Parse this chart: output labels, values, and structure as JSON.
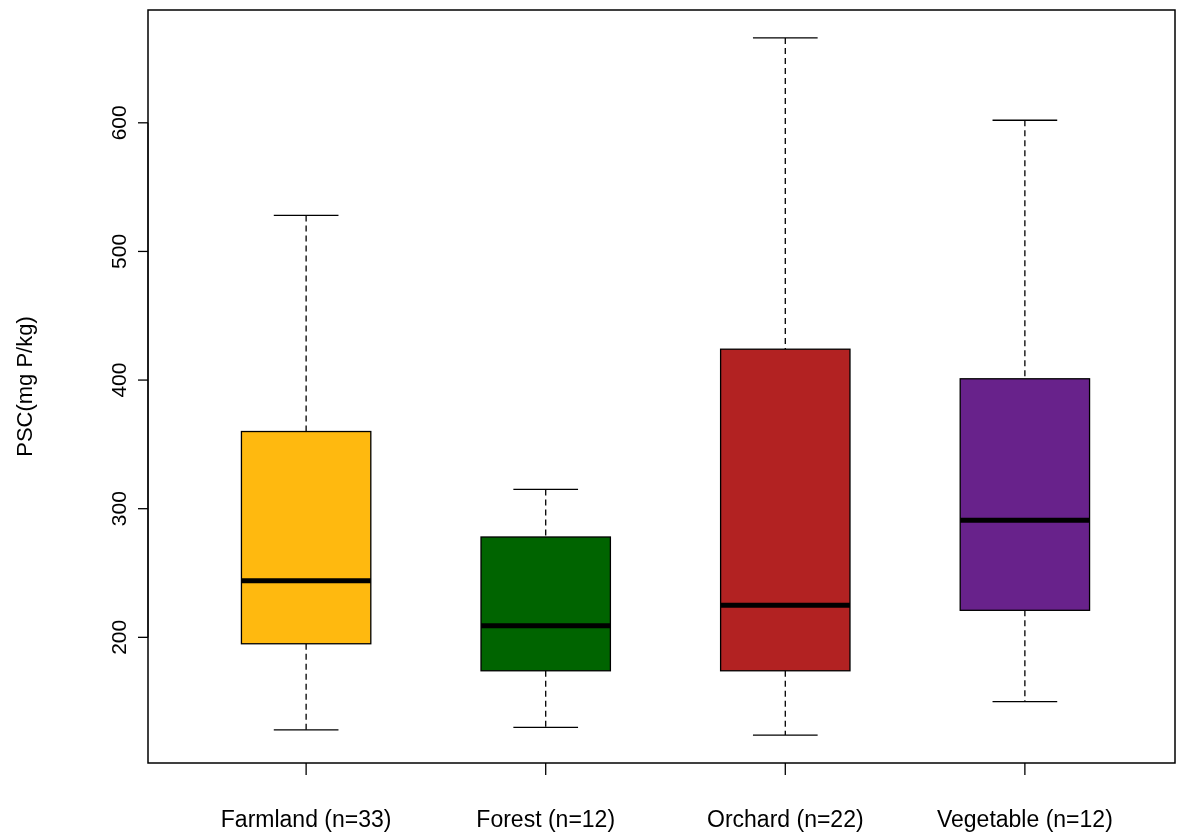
{
  "chart_data": {
    "type": "box",
    "ylabel": "PSC(mg P/kg)",
    "categories": [
      "Farmland (n=33)",
      "Forest (n=12)",
      "Orchard (n=22)",
      "Vegetable (n=12)"
    ],
    "colors": [
      "#ffb90f",
      "#006400",
      "#b22222",
      "#68228b"
    ],
    "boxes": [
      {
        "low": 128,
        "q1": 195,
        "median": 244,
        "q3": 360,
        "high": 528
      },
      {
        "low": 130,
        "q1": 174,
        "median": 209,
        "q3": 278,
        "high": 315
      },
      {
        "low": 124,
        "q1": 174,
        "median": 225,
        "q3": 424,
        "high": 666
      },
      {
        "low": 150,
        "q1": 221,
        "median": 291,
        "q3": 401,
        "high": 602
      }
    ],
    "ylim": [
      102.3,
      687.7
    ],
    "yticks": [
      200,
      300,
      400,
      500,
      600
    ],
    "grid": false
  }
}
